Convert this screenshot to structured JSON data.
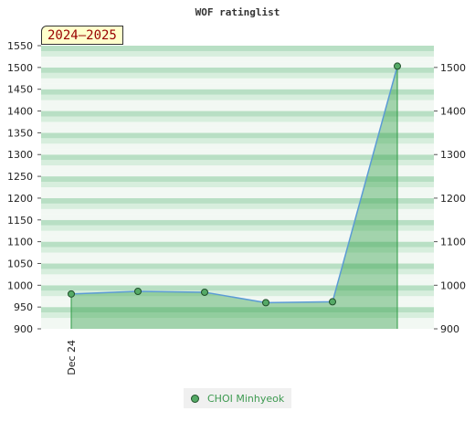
{
  "chart_data": {
    "type": "area",
    "title": "WOF ratinglist",
    "period_label": "2024–2025",
    "x_labels": [
      "Dec 24"
    ],
    "series": [
      {
        "name": "CHOI Minhyeok",
        "values": [
          980,
          986,
          984,
          960,
          962,
          1503
        ],
        "color": "#2a9a40"
      }
    ],
    "ylim": [
      900,
      1550
    ],
    "left_ticks": [
      900,
      950,
      1000,
      1050,
      1100,
      1150,
      1200,
      1250,
      1300,
      1350,
      1400,
      1450,
      1500,
      1550
    ],
    "right_ticks": [
      900,
      1000,
      1100,
      1200,
      1300,
      1400,
      1500
    ],
    "band_colors": [
      "#f2f8f3",
      "#d7eedd",
      "#b8dfc4"
    ],
    "grid": true,
    "legend_position": "bottom-center"
  }
}
